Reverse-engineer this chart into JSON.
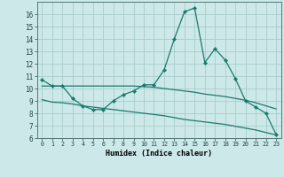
{
  "line1_x": [
    0,
    1,
    2,
    3,
    4,
    5,
    6,
    7,
    8,
    9,
    10,
    11,
    12,
    13,
    14,
    15,
    16,
    17,
    18,
    19,
    20,
    21,
    22,
    23
  ],
  "line1_y": [
    10.7,
    10.2,
    10.2,
    9.2,
    8.6,
    8.3,
    8.3,
    9.0,
    9.5,
    9.8,
    10.3,
    10.3,
    11.5,
    14.0,
    16.2,
    16.5,
    12.1,
    13.2,
    12.3,
    10.8,
    9.0,
    8.5,
    8.0,
    6.3
  ],
  "line2_x": [
    0,
    1,
    2,
    3,
    4,
    5,
    6,
    7,
    8,
    9,
    10,
    11,
    12,
    13,
    14,
    15,
    16,
    17,
    18,
    19,
    20,
    21,
    22,
    23
  ],
  "line2_y": [
    10.2,
    10.2,
    10.2,
    10.2,
    10.2,
    10.2,
    10.2,
    10.2,
    10.2,
    10.2,
    10.15,
    10.1,
    10.0,
    9.9,
    9.8,
    9.7,
    9.55,
    9.45,
    9.35,
    9.2,
    9.05,
    8.85,
    8.6,
    8.35
  ],
  "line3_x": [
    0,
    1,
    2,
    3,
    4,
    5,
    6,
    7,
    8,
    9,
    10,
    11,
    12,
    13,
    14,
    15,
    16,
    17,
    18,
    19,
    20,
    21,
    22,
    23
  ],
  "line3_y": [
    9.1,
    8.9,
    8.85,
    8.75,
    8.6,
    8.5,
    8.4,
    8.3,
    8.2,
    8.1,
    8.0,
    7.9,
    7.8,
    7.65,
    7.5,
    7.4,
    7.3,
    7.2,
    7.1,
    6.95,
    6.8,
    6.65,
    6.45,
    6.25
  ],
  "line_color": "#1a7a6e",
  "bg_color": "#cce8e8",
  "grid_color": "#aacccc",
  "xlabel": "Humidex (Indice chaleur)",
  "xlim": [
    -0.5,
    23.5
  ],
  "ylim": [
    6,
    17
  ],
  "yticks": [
    6,
    7,
    8,
    9,
    10,
    11,
    12,
    13,
    14,
    15,
    16
  ],
  "xticks": [
    0,
    1,
    2,
    3,
    4,
    5,
    6,
    7,
    8,
    9,
    10,
    11,
    12,
    13,
    14,
    15,
    16,
    17,
    18,
    19,
    20,
    21,
    22,
    23
  ],
  "markersize": 2.2,
  "linewidth": 0.9
}
